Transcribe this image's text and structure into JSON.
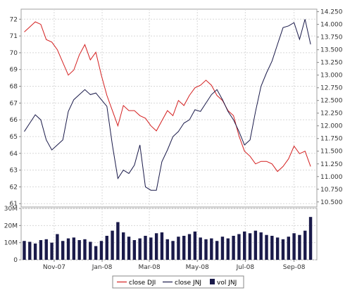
{
  "chart_data": {
    "type": "line",
    "x_tick_labels": [
      "Nov-07",
      "Jan-08",
      "Mar-08",
      "May-08",
      "Jul-08",
      "Sep-08"
    ],
    "grid": true,
    "legend_position": "bottom-center",
    "price_panel": {
      "left_axis": {
        "label": "",
        "range": [
          60.8,
          72.6
        ],
        "ticks": [
          61,
          62,
          63,
          64,
          65,
          66,
          67,
          68,
          69,
          70,
          71,
          72
        ]
      },
      "right_axis": {
        "label": "",
        "range": [
          10.4,
          14.3
        ],
        "ticks": [
          "10.500",
          "10.750",
          "11.000",
          "11.250",
          "11.500",
          "11.750",
          "12.000",
          "12.250",
          "12.500",
          "12.750",
          "13.000",
          "13.250",
          "13.500",
          "13.750",
          "14.000",
          "14.250"
        ]
      }
    },
    "volume_panel": {
      "axis": {
        "label": "",
        "range": [
          0,
          30000000
        ],
        "ticks": [
          0,
          10000000,
          20000000,
          30000000
        ],
        "tick_labels": [
          "0",
          "10M",
          "20M",
          "30M"
        ]
      }
    },
    "series": [
      {
        "name": "close DJI",
        "color": "#d42020",
        "axis": "right",
        "x": [
          "2007-09-24",
          "2007-10-01",
          "2007-10-08",
          "2007-10-15",
          "2007-10-22",
          "2007-10-29",
          "2007-11-05",
          "2007-11-12",
          "2007-11-19",
          "2007-11-26",
          "2007-12-03",
          "2007-12-10",
          "2007-12-17",
          "2007-12-24",
          "2007-12-31",
          "2008-01-07",
          "2008-01-14",
          "2008-01-21",
          "2008-01-28",
          "2008-02-04",
          "2008-02-11",
          "2008-02-18",
          "2008-02-25",
          "2008-03-03",
          "2008-03-10",
          "2008-03-17",
          "2008-03-24",
          "2008-03-31",
          "2008-04-07",
          "2008-04-14",
          "2008-04-21",
          "2008-04-28",
          "2008-05-05",
          "2008-05-12",
          "2008-05-19",
          "2008-05-26",
          "2008-06-02",
          "2008-06-09",
          "2008-06-16",
          "2008-06-23",
          "2008-06-30",
          "2008-07-07",
          "2008-07-14",
          "2008-07-21",
          "2008-07-28",
          "2008-08-04",
          "2008-08-11",
          "2008-08-18",
          "2008-08-25",
          "2008-09-01",
          "2008-09-08",
          "2008-09-15",
          "2008-09-22"
        ],
        "values": [
          13.85,
          13.95,
          14.05,
          14.0,
          13.7,
          13.65,
          13.5,
          13.25,
          13.0,
          13.1,
          13.4,
          13.6,
          13.3,
          13.45,
          13.0,
          12.6,
          12.3,
          12.0,
          12.4,
          12.3,
          12.3,
          12.2,
          12.15,
          12.0,
          11.9,
          12.1,
          12.3,
          12.2,
          12.5,
          12.4,
          12.6,
          12.75,
          12.8,
          12.9,
          12.8,
          12.6,
          12.5,
          12.3,
          12.2,
          11.8,
          11.5,
          11.4,
          11.25,
          11.3,
          11.3,
          11.25,
          11.1,
          11.2,
          11.35,
          11.6,
          11.45,
          11.5,
          11.2
        ]
      },
      {
        "name": "close JNJ",
        "color": "#1a1a4a",
        "axis": "left",
        "x": [
          "2007-09-24",
          "2007-10-01",
          "2007-10-08",
          "2007-10-15",
          "2007-10-22",
          "2007-10-29",
          "2007-11-05",
          "2007-11-12",
          "2007-11-19",
          "2007-11-26",
          "2007-12-03",
          "2007-12-10",
          "2007-12-17",
          "2007-12-24",
          "2007-12-31",
          "2008-01-07",
          "2008-01-14",
          "2008-01-21",
          "2008-01-28",
          "2008-02-04",
          "2008-02-11",
          "2008-02-18",
          "2008-02-25",
          "2008-03-03",
          "2008-03-10",
          "2008-03-17",
          "2008-03-24",
          "2008-03-31",
          "2008-04-07",
          "2008-04-14",
          "2008-04-21",
          "2008-04-28",
          "2008-05-05",
          "2008-05-12",
          "2008-05-19",
          "2008-05-26",
          "2008-06-02",
          "2008-06-09",
          "2008-06-16",
          "2008-06-23",
          "2008-06-30",
          "2008-07-07",
          "2008-07-14",
          "2008-07-21",
          "2008-07-28",
          "2008-08-04",
          "2008-08-11",
          "2008-08-18",
          "2008-08-25",
          "2008-09-01",
          "2008-09-08",
          "2008-09-15",
          "2008-09-22"
        ],
        "values": [
          65.3,
          65.8,
          66.3,
          66.0,
          64.8,
          64.2,
          64.5,
          64.8,
          66.5,
          67.2,
          67.5,
          67.8,
          67.5,
          67.6,
          67.2,
          66.8,
          64.5,
          62.5,
          63.0,
          62.8,
          63.3,
          64.5,
          62.0,
          61.8,
          61.8,
          63.5,
          64.2,
          65.0,
          65.3,
          65.8,
          66.0,
          66.6,
          66.5,
          67.0,
          67.5,
          67.8,
          67.2,
          66.5,
          66.0,
          65.3,
          64.5,
          64.8,
          66.5,
          68.0,
          68.8,
          69.5,
          70.5,
          71.5,
          71.6,
          71.8,
          70.8,
          72.0,
          70.5
        ]
      },
      {
        "name": "vol JNJ",
        "color": "#1a1a4a",
        "axis": "volume",
        "style": "bar",
        "x": [
          "2007-09-24",
          "2007-10-01",
          "2007-10-08",
          "2007-10-15",
          "2007-10-22",
          "2007-10-29",
          "2007-11-05",
          "2007-11-12",
          "2007-11-19",
          "2007-11-26",
          "2007-12-03",
          "2007-12-10",
          "2007-12-17",
          "2007-12-24",
          "2007-12-31",
          "2008-01-07",
          "2008-01-14",
          "2008-01-21",
          "2008-01-28",
          "2008-02-04",
          "2008-02-11",
          "2008-02-18",
          "2008-02-25",
          "2008-03-03",
          "2008-03-10",
          "2008-03-17",
          "2008-03-24",
          "2008-03-31",
          "2008-04-07",
          "2008-04-14",
          "2008-04-21",
          "2008-04-28",
          "2008-05-05",
          "2008-05-12",
          "2008-05-19",
          "2008-05-26",
          "2008-06-02",
          "2008-06-09",
          "2008-06-16",
          "2008-06-23",
          "2008-06-30",
          "2008-07-07",
          "2008-07-14",
          "2008-07-21",
          "2008-07-28",
          "2008-08-04",
          "2008-08-11",
          "2008-08-18",
          "2008-08-25",
          "2008-09-01",
          "2008-09-08",
          "2008-09-15",
          "2008-09-22"
        ],
        "values": [
          11000000,
          10500000,
          9500000,
          11500000,
          12000000,
          10000000,
          15000000,
          11000000,
          12500000,
          13000000,
          11500000,
          12000000,
          10500000,
          8000000,
          11000000,
          14000000,
          17000000,
          22000000,
          16000000,
          13500000,
          11500000,
          12500000,
          14000000,
          13000000,
          15500000,
          16000000,
          12000000,
          11000000,
          13500000,
          14000000,
          15000000,
          16500000,
          13000000,
          12000000,
          12500000,
          11000000,
          13500000,
          12500000,
          14000000,
          15000000,
          16500000,
          15500000,
          17000000,
          16000000,
          14500000,
          14000000,
          13000000,
          12000000,
          13500000,
          15500000,
          14500000,
          17000000,
          25000000
        ]
      }
    ]
  }
}
